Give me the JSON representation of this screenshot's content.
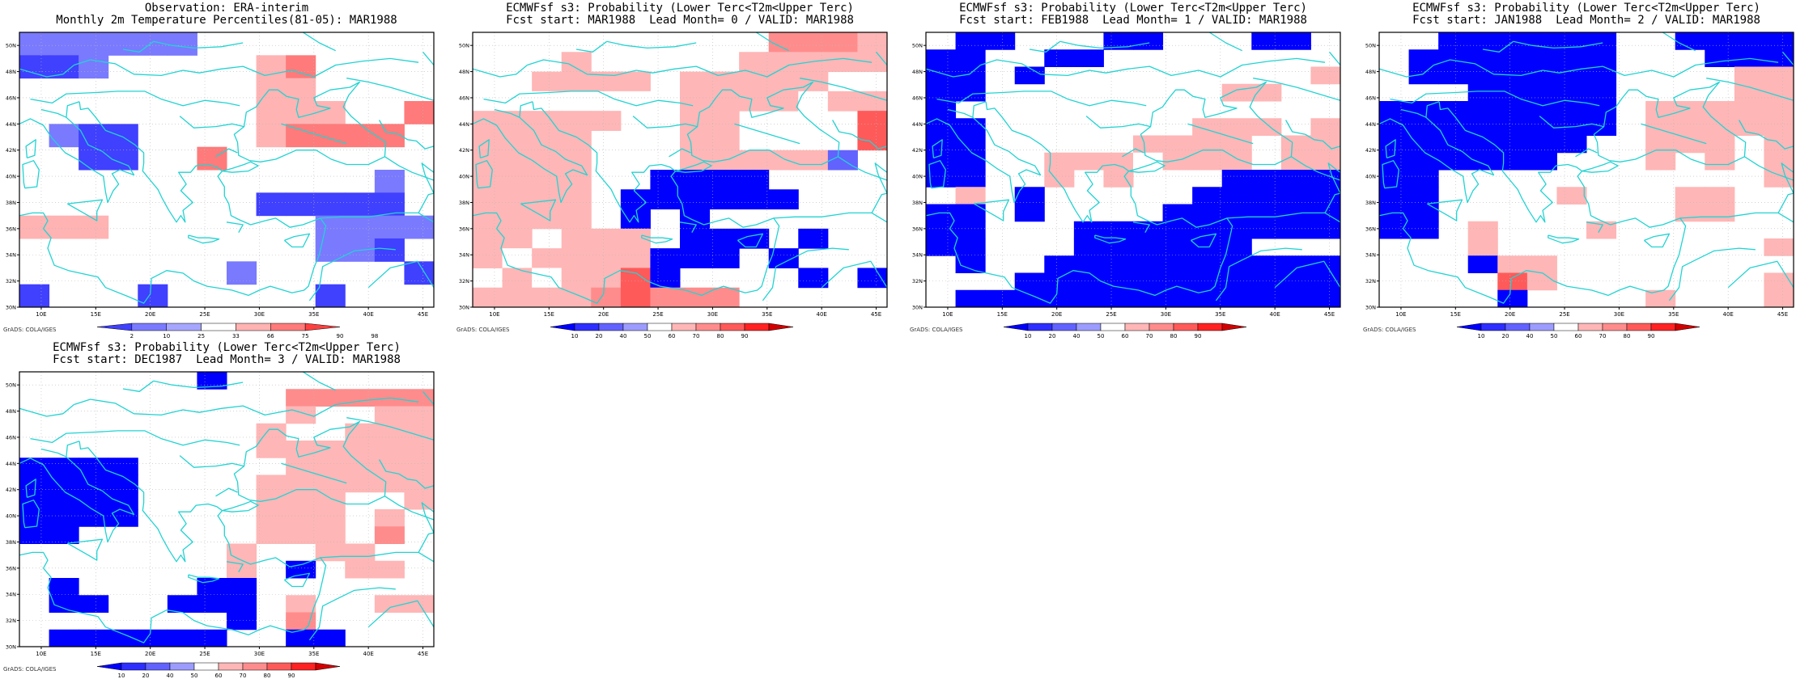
{
  "colors": {
    "ocean_lines": "#22d3d3",
    "grid": "#b8b8b8",
    "obs_palette": [
      "#4040ff",
      "#7a7aff",
      "#a6a6ff",
      "#ffffff",
      "#ffb3b3",
      "#ff7a7a",
      "#ff4040"
    ],
    "prob_palette": [
      "#0000ff",
      "#2e2eff",
      "#6262ff",
      "#9c9cff",
      "#ffffff",
      "#ffb6b6",
      "#ff8c8c",
      "#ff5a5a",
      "#ff2222",
      "#d20000"
    ]
  },
  "map": {
    "lon_labels": [
      "10E",
      "15E",
      "20E",
      "25E",
      "30E",
      "35E",
      "40E",
      "45E"
    ],
    "lat_labels": [
      "30N",
      "32N",
      "34N",
      "36N",
      "38N",
      "40N",
      "42N",
      "44N",
      "46N",
      "48N",
      "50N"
    ]
  },
  "credit": "GrADS: COLA/IGES",
  "panels": [
    {
      "title_line1": "Observation: ERA-interim",
      "title_line2": "Monthly 2m Temperature Percentiles(81-05): MAR1988",
      "legend_labels": [
        "2",
        "10",
        "25",
        "33",
        "66",
        "75",
        "90",
        "98"
      ],
      "legend_kind": "obs",
      "grid": [
        "22222200000000",
        "11230000560000",
        "00000000550000",
        "00000000555006",
        "02110000566660",
        "00110060000000",
        "00000000000020",
        "00000000111110",
        "55500000002222",
        "00000000002210",
        "00000002000001",
        "10001000001000"
      ]
    },
    {
      "title_line1": "ECMWFsf s3: Probability (Lower Terc<T2m<Upper Terc)",
      "title_line2": "Fcst start: MAR1988  Lead Month= 0 / VALID: MAR1988",
      "legend_labels": [
        "10",
        "20",
        "40",
        "50",
        "60",
        "70",
        "80",
        "90"
      ],
      "legend_kind": "prob",
      "grid": [
        "00000000007776",
        "00060000066666",
        "00666606666600",
        "00555556666566",
        "66666006600008",
        "66660006600008",
        "66660006666630",
        "66660011110000",
        "66660111111000",
        "66660101000000",
        "66066601110100",
        "65666611101000",
        "06566810000101",
        "66667877700000"
      ]
    },
    {
      "title_line1": "ECMWFsf s3: Probability (Lower Terc<T2m<Upper Terc)",
      "title_line2": "Fcst start: FEB1988  Lead Month= 1 / VALID: MAR1988",
      "legend_labels": [
        "10",
        "20",
        "40",
        "50",
        "60",
        "70",
        "80",
        "90"
      ],
      "legend_kind": "prob",
      "grid": [
        "01100011000110",
        "11001100000000",
        "11010000000006",
        "11000000006600",
        "10000000000000",
        "11000000066606",
        "11000006666066",
        "11006665666066",
        "11006060001111",
        "06010000011111",
        "11010000111111",
        "11000111111111",
        "11000111111000",
        "01001111111111",
        "00011111111111",
        "01111111111111"
      ]
    },
    {
      "title_line1": "ECMWFsf s3: Probability (Lower Terc<T2m<Upper Terc)",
      "title_line2": "Fcst start: JAN1988  Lead Month= 2 / VALID: MAR1988",
      "legend_labels": [
        "10",
        "20",
        "40",
        "50",
        "60",
        "70",
        "80",
        "90"
      ],
      "legend_kind": "prob",
      "grid": [
        "00111111001111",
        "01111111000111",
        "01111111000066",
        "00011111000066",
        "11111111066666",
        "11111111066666",
        "11111110066606",
        "11111100060606",
        "11000000000006",
        "11000060006600",
        "11000000006600",
        "11060006000000",
        "00060000000006",
        "00016600000000",
        "00008600000006",
        "00001000060006"
      ]
    },
    {
      "title_line1": "ECMWFsf s3: Probability (Lower Terc<T2m<Upper Terc)",
      "title_line2": "Fcst start: DEC1987  Lead Month= 3 / VALID: MAR1988",
      "legend_labels": [
        "10",
        "20",
        "40",
        "50",
        "60",
        "70",
        "80",
        "90"
      ],
      "legend_kind": "prob",
      "grid": [
        "00000010000000",
        "00000000077777",
        "00000000060066",
        "00000000600666",
        "00000000666666",
        "11110000066666",
        "11110000666666",
        "11110000666006",
        "11110000666060",
        "11000000666070",
        "00000006006600",
        "00000006010660",
        "01000011000000",
        "01100111060066",
        "00000001070000",
        "01111110011000"
      ]
    }
  ]
}
